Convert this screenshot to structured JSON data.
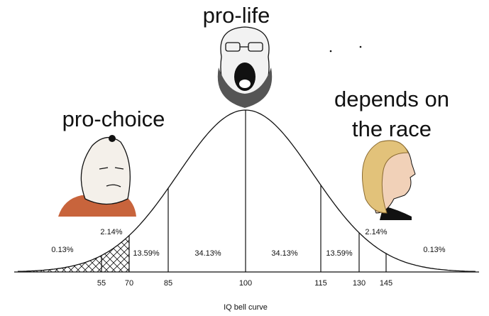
{
  "captions": {
    "top": "pro-life",
    "left": "pro-choice",
    "right": [
      "depends on",
      "the race"
    ]
  },
  "regions": [
    "0.13%",
    "2.14%",
    "13.59%",
    "34.13%",
    "34.13%",
    "13.59%",
    "2.14%",
    "0.13%"
  ],
  "x_axis": {
    "ticks": [
      "55",
      "70",
      "85",
      "100",
      "115",
      "130",
      "145"
    ],
    "label": "IQ bell curve"
  }
}
